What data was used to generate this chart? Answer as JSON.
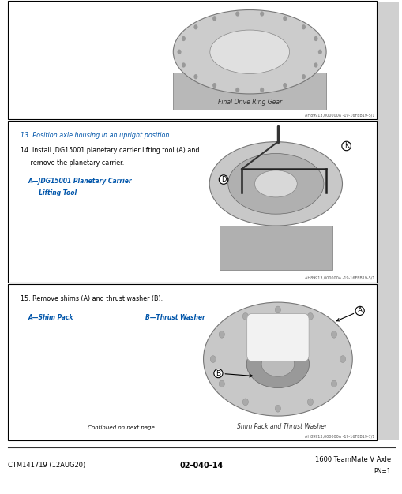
{
  "bg_color": "#ffffff",
  "border_color": "#000000",
  "section1": {
    "image_caption": "Final Drive Ring Gear",
    "ref_code": "AH89913,000000A -19-16FEB19-5/1"
  },
  "section2": {
    "step13": "13. Position axle housing in an upright position.",
    "step14_main": "14. Install JDG15001 planetary carrier lifting tool (A) and",
    "step14_cont": "     remove the planetary carrier.",
    "label_A": "A—JDG15001 Planetary Carrier",
    "label_A2": "     Lifting Tool",
    "ref_code": "AH89913,000000A -19-16FEB19-5/1"
  },
  "section3": {
    "step15": "15. Remove shims (A) and thrust washer (B).",
    "label_A": "A—Shim Pack",
    "label_B": "B—Thrust Washer",
    "image_caption": "Shim Pack and Thrust Washer",
    "continued": "Continued on next page",
    "ref_code": "AH89913,000000A -19-16FEB19-7/1"
  },
  "footer": {
    "left": "CTM141719 (12AUG20)",
    "center": "02-040-14",
    "right": "1600 TeamMate V Axle",
    "right2": "PN=1"
  },
  "text_color": "#000000",
  "blue_color": "#0055aa",
  "caption_color": "#333333",
  "ref_color": "#555555",
  "gray_sidebar": "#d0d0d0"
}
